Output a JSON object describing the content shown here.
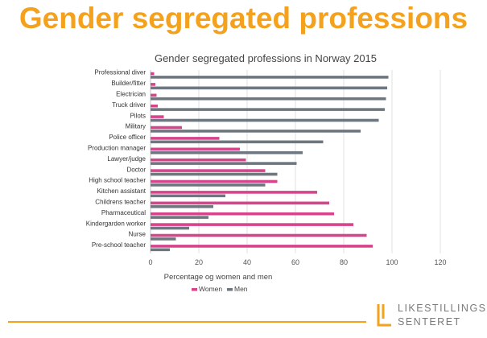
{
  "slide": {
    "title": "Gender segregated professions"
  },
  "logo": {
    "line1": "LIKESTILLINGS-",
    "line2": "SENTERET",
    "color": "#f4a21e",
    "text_color": "#7a7a7a"
  },
  "chart_data": {
    "type": "bar",
    "orientation": "horizontal",
    "title": "Gender segregated professions in Norway 2015",
    "xlabel": "Percentage og women and men",
    "ylabel": "",
    "xlim": [
      0,
      120
    ],
    "xticks": [
      0,
      20,
      40,
      60,
      80,
      100,
      120
    ],
    "grid": true,
    "legend_position": "bottom",
    "categories": [
      "Professional diver",
      "Builder/fitter",
      "Electrician",
      "Truck driver",
      "Pilots",
      "Military",
      "Police officer",
      "Production manager",
      "Lawyer/judge",
      "Doctor",
      "High school teacher",
      "Kitchen assistant",
      "Childrens teacher",
      "Pharmaceutical",
      "Kindergarden worker",
      "Nurse",
      "Pre-school teacher"
    ],
    "series": [
      {
        "name": "Women",
        "color": "#d6448c",
        "values": [
          1.5,
          2,
          2.5,
          3,
          5.5,
          13,
          28.5,
          37,
          39.5,
          47.5,
          52.5,
          69,
          74,
          76,
          84,
          89.5,
          92
        ]
      },
      {
        "name": "Men",
        "color": "#6e7780",
        "values": [
          98.5,
          98,
          97.5,
          97,
          94.5,
          87,
          71.5,
          63,
          60.5,
          52.5,
          47.5,
          31,
          26,
          24,
          16,
          10.5,
          8
        ]
      }
    ]
  }
}
